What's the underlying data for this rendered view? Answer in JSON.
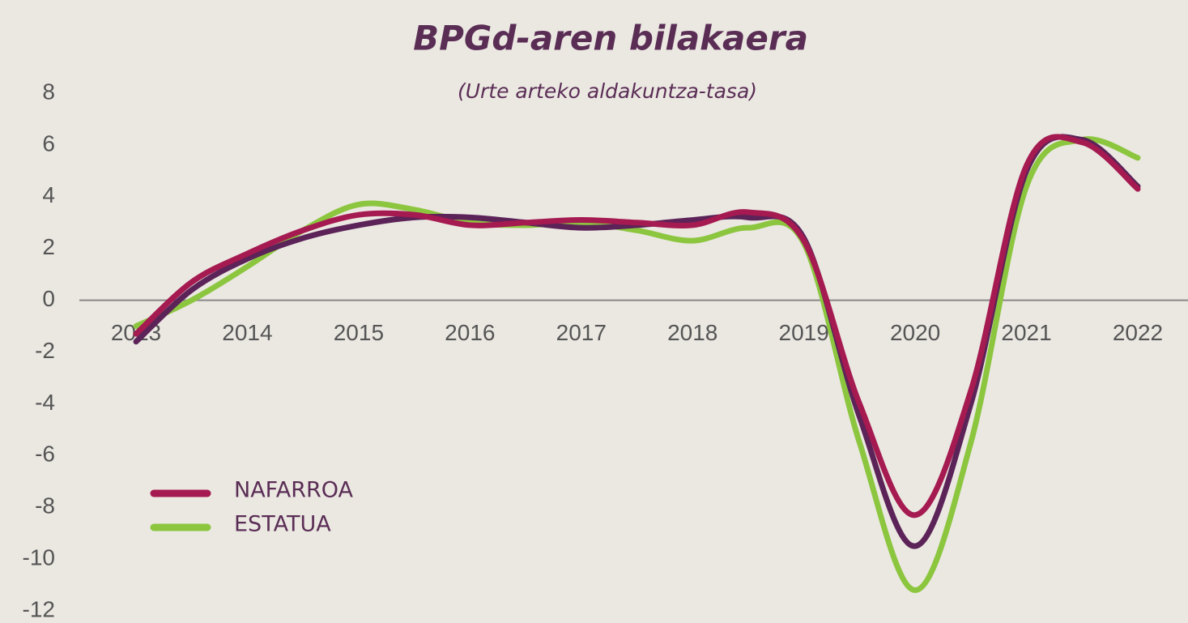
{
  "chart_data": {
    "type": "line",
    "title": "BPGd-aren bilakaera",
    "subtitle": "(Urte arteko aldakuntza-tasa)",
    "x": [
      2013,
      2013.5,
      2014,
      2014.5,
      2015,
      2015.5,
      2016,
      2016.5,
      2017,
      2017.5,
      2018,
      2018.5,
      2019,
      2019.5,
      2020,
      2020.5,
      2021,
      2021.5,
      2022
    ],
    "xlim": [
      2013,
      2022
    ],
    "xticks": [
      2013,
      2014,
      2015,
      2016,
      2017,
      2018,
      2019,
      2020,
      2021,
      2022
    ],
    "ylim": [
      -12,
      8
    ],
    "yticks": [
      -12,
      -10,
      -8,
      -6,
      -4,
      -2,
      0,
      2,
      4,
      6,
      8
    ],
    "series": [
      {
        "name": "ESTATUA",
        "color": "#8cc63f",
        "values": [
          -1.0,
          0.0,
          1.3,
          2.7,
          3.7,
          3.5,
          3.0,
          2.9,
          3.0,
          2.7,
          2.3,
          2.8,
          2.2,
          -5.5,
          -11.2,
          -5.5,
          4.4,
          6.2,
          5.5
        ]
      },
      {
        "color": "#5c2358",
        "values": [
          -1.6,
          0.4,
          1.6,
          2.4,
          2.9,
          3.2,
          3.2,
          3.0,
          2.8,
          2.9,
          3.1,
          3.2,
          2.4,
          -4.5,
          -9.5,
          -4.0,
          5.0,
          6.2,
          4.4
        ]
      },
      {
        "name": "NAFARROA",
        "color": "#a51a50",
        "values": [
          -1.3,
          0.7,
          1.8,
          2.7,
          3.3,
          3.3,
          2.9,
          3.0,
          3.1,
          3.0,
          2.9,
          3.4,
          2.3,
          -4.0,
          -8.3,
          -3.5,
          5.2,
          6.1,
          4.3
        ]
      }
    ],
    "legend_position": "lower left"
  }
}
